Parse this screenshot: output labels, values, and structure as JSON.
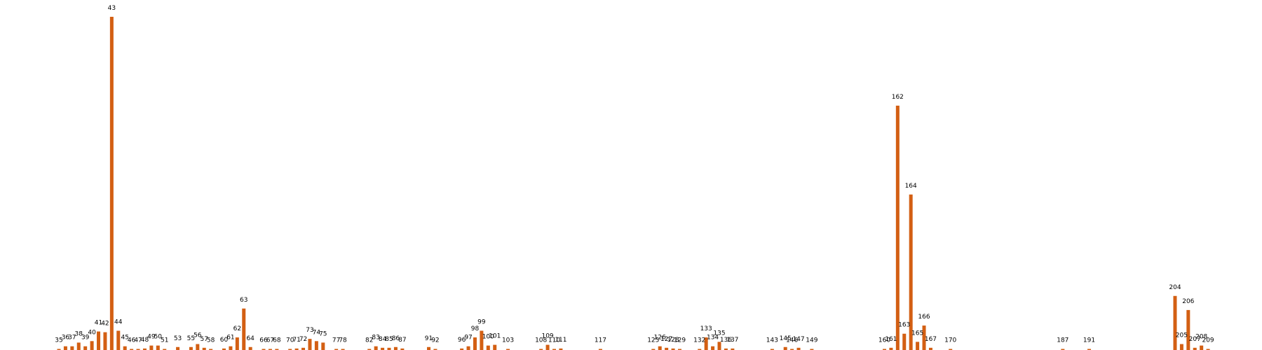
{
  "chart_data": {
    "type": "bar",
    "title": "",
    "xlabel": "",
    "ylabel": "",
    "ylim": [
      0,
      45
    ],
    "grid": false,
    "axes_visible": false,
    "bar_color": "#d35f13",
    "series": [
      {
        "name": "",
        "values": [
          {
            "x": 35,
            "y": 0.1
          },
          {
            "x": 36,
            "y": 0.5
          },
          {
            "x": 37,
            "y": 0.5
          },
          {
            "x": 38,
            "y": 1.0
          },
          {
            "x": 39,
            "y": 0.5
          },
          {
            "x": 40,
            "y": 1.2
          },
          {
            "x": 41,
            "y": 2.5
          },
          {
            "x": 42,
            "y": 2.4
          },
          {
            "x": 43,
            "y": 45.0
          },
          {
            "x": 44,
            "y": 2.6
          },
          {
            "x": 45,
            "y": 0.5
          },
          {
            "x": 46,
            "y": 0.1
          },
          {
            "x": 47,
            "y": 0.1
          },
          {
            "x": 48,
            "y": 0.2
          },
          {
            "x": 49,
            "y": 0.6
          },
          {
            "x": 50,
            "y": 0.6
          },
          {
            "x": 51,
            "y": 0.1
          },
          {
            "x": 53,
            "y": 0.4
          },
          {
            "x": 55,
            "y": 0.4
          },
          {
            "x": 56,
            "y": 0.8
          },
          {
            "x": 57,
            "y": 0.3
          },
          {
            "x": 58,
            "y": 0.1
          },
          {
            "x": 60,
            "y": 0.2
          },
          {
            "x": 61,
            "y": 0.5
          },
          {
            "x": 62,
            "y": 1.7
          },
          {
            "x": 63,
            "y": 5.6
          },
          {
            "x": 64,
            "y": 0.4
          },
          {
            "x": 66,
            "y": 0.1
          },
          {
            "x": 67,
            "y": 0.1
          },
          {
            "x": 68,
            "y": 0.05
          },
          {
            "x": 70,
            "y": 0.1
          },
          {
            "x": 71,
            "y": 0.2
          },
          {
            "x": 72,
            "y": 0.3
          },
          {
            "x": 73,
            "y": 1.5
          },
          {
            "x": 74,
            "y": 1.2
          },
          {
            "x": 75,
            "y": 1.0
          },
          {
            "x": 77,
            "y": 0.05
          },
          {
            "x": 78,
            "y": 0.05
          },
          {
            "x": 82,
            "y": 0.1
          },
          {
            "x": 83,
            "y": 0.5
          },
          {
            "x": 84,
            "y": 0.3
          },
          {
            "x": 85,
            "y": 0.3
          },
          {
            "x": 86,
            "y": 0.4
          },
          {
            "x": 87,
            "y": 0.2
          },
          {
            "x": 91,
            "y": 0.4
          },
          {
            "x": 92,
            "y": 0.1
          },
          {
            "x": 96,
            "y": 0.2
          },
          {
            "x": 97,
            "y": 0.5
          },
          {
            "x": 98,
            "y": 1.7
          },
          {
            "x": 99,
            "y": 2.6
          },
          {
            "x": 100,
            "y": 0.6
          },
          {
            "x": 101,
            "y": 0.7
          },
          {
            "x": 103,
            "y": 0.05
          },
          {
            "x": 108,
            "y": 0.1
          },
          {
            "x": 109,
            "y": 0.7
          },
          {
            "x": 110,
            "y": 0.1
          },
          {
            "x": 111,
            "y": 0.2
          },
          {
            "x": 117,
            "y": 0.02
          },
          {
            "x": 125,
            "y": 0.05
          },
          {
            "x": 126,
            "y": 0.5
          },
          {
            "x": 127,
            "y": 0.3
          },
          {
            "x": 128,
            "y": 0.2
          },
          {
            "x": 129,
            "y": 0.1
          },
          {
            "x": 132,
            "y": 0.1
          },
          {
            "x": 133,
            "y": 1.7
          },
          {
            "x": 134,
            "y": 0.5
          },
          {
            "x": 135,
            "y": 1.1
          },
          {
            "x": 136,
            "y": 0.2
          },
          {
            "x": 137,
            "y": 0.2
          },
          {
            "x": 143,
            "y": 0.1
          },
          {
            "x": 145,
            "y": 0.4
          },
          {
            "x": 146,
            "y": 0.05
          },
          {
            "x": 147,
            "y": 0.3
          },
          {
            "x": 149,
            "y": 0.1
          },
          {
            "x": 160,
            "y": 0.1
          },
          {
            "x": 161,
            "y": 0.3
          },
          {
            "x": 162,
            "y": 33.0
          },
          {
            "x": 163,
            "y": 2.2
          },
          {
            "x": 164,
            "y": 21.0
          },
          {
            "x": 165,
            "y": 1.1
          },
          {
            "x": 166,
            "y": 3.3
          },
          {
            "x": 167,
            "y": 0.3
          },
          {
            "x": 170,
            "y": 0.02
          },
          {
            "x": 187,
            "y": 0.02
          },
          {
            "x": 191,
            "y": 0.02
          },
          {
            "x": 204,
            "y": 7.3
          },
          {
            "x": 205,
            "y": 0.8
          },
          {
            "x": 206,
            "y": 5.4
          },
          {
            "x": 207,
            "y": 0.3
          },
          {
            "x": 208,
            "y": 0.6
          },
          {
            "x": 209,
            "y": 0.1
          }
        ]
      }
    ]
  }
}
